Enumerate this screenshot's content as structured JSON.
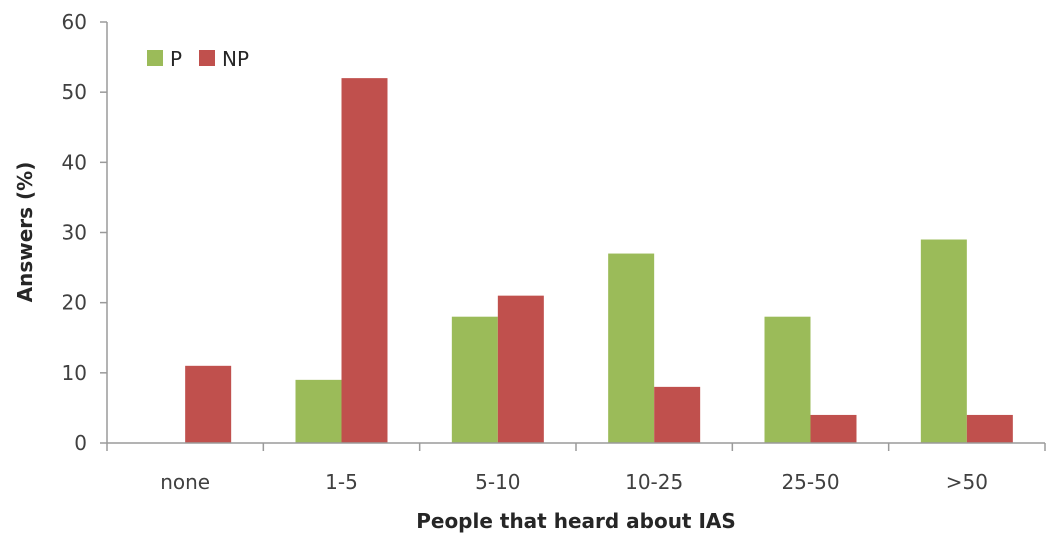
{
  "chart_data": {
    "type": "bar",
    "categories": [
      "none",
      "1-5",
      "5-10",
      "10-25",
      "25-50",
      ">50"
    ],
    "series": [
      {
        "name": "P",
        "values": [
          0,
          9,
          18,
          27,
          18,
          29
        ],
        "color": "#9bbb59"
      },
      {
        "name": "NP",
        "values": [
          11,
          52,
          21,
          8,
          4,
          4
        ],
        "color": "#c0504d"
      }
    ],
    "xlabel": "People that heard about IAS",
    "ylabel": "Answers (%)",
    "ylim": [
      0,
      60
    ],
    "yticks": [
      "0",
      "10",
      "20",
      "30",
      "40",
      "50",
      "60"
    ],
    "legend": "top-left",
    "grid": false
  }
}
